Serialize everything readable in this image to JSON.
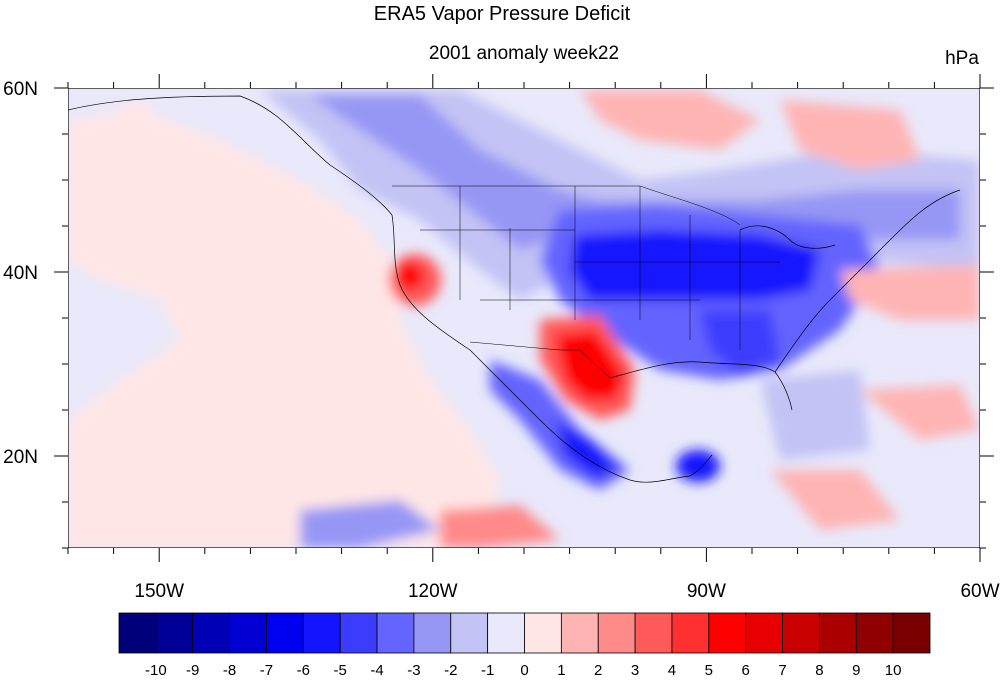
{
  "title": "ERA5 Vapor Pressure Deficit",
  "subtitle": "2001 anomaly week22",
  "units": "hPa",
  "map": {
    "projection": "cylindrical-equidistant",
    "lon_range": [
      -160,
      -60
    ],
    "lat_range": [
      10,
      60
    ],
    "lon_tick_labels": [
      {
        "lon": -150,
        "label": "150W"
      },
      {
        "lon": -120,
        "label": "120W"
      },
      {
        "lon": -90,
        "label": "90W"
      },
      {
        "lon": -60,
        "label": "60W"
      }
    ],
    "lat_tick_labels": [
      {
        "lat": 60,
        "label": "60N"
      },
      {
        "lat": 40,
        "label": "40N"
      },
      {
        "lat": 20,
        "label": "20N"
      }
    ],
    "anomaly_regions": [
      {
        "name": "northern-california-nevada",
        "lon": -122.5,
        "lat": 39.3,
        "value": 5
      },
      {
        "name": "northern-mexico-west-texas",
        "lon": -104,
        "lat": 29.5,
        "value": 6
      },
      {
        "name": "south-texas-tamaulipas",
        "lon": -101,
        "lat": 27.5,
        "value": 5
      },
      {
        "name": "central-plains-midwest",
        "lon": -96,
        "lat": 40,
        "value": -6
      },
      {
        "name": "great-lakes",
        "lon": -84,
        "lat": 42,
        "value": -5
      },
      {
        "name": "southeast-us",
        "lon": -85,
        "lat": 33,
        "value": -4
      },
      {
        "name": "southwest-mexico-coast",
        "lon": -104,
        "lat": 19,
        "value": -6
      },
      {
        "name": "yucatan",
        "lon": -89,
        "lat": 20,
        "value": -5
      },
      {
        "name": "western-atlantic",
        "lon": -68,
        "lat": 37,
        "value": 2
      },
      {
        "name": "eastern-pacific-south",
        "lon": -112,
        "lat": 13,
        "value": 3
      }
    ]
  },
  "colorbar": {
    "labels": [
      "-10",
      "-9",
      "-8",
      "-7",
      "-6",
      "-5",
      "-4",
      "-3",
      "-2",
      "-1",
      "0",
      "1",
      "2",
      "3",
      "4",
      "5",
      "6",
      "7",
      "8",
      "9",
      "10"
    ],
    "colors": [
      "#00007a",
      "#000096",
      "#0000b4",
      "#0000d2",
      "#0000f0",
      "#1414ff",
      "#3c3cff",
      "#6464ff",
      "#9696f5",
      "#c3c3f5",
      "#e9e9fb",
      "#ffe6e6",
      "#ffb4b4",
      "#ff8a8a",
      "#ff5a5a",
      "#ff3030",
      "#ff0000",
      "#e60000",
      "#c80000",
      "#aa0000",
      "#900000",
      "#780000"
    ]
  }
}
